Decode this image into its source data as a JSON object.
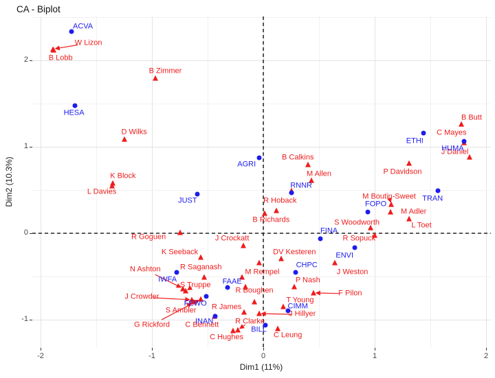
{
  "title": "CA - Biplot",
  "axes": {
    "x": {
      "label": "Dim1 (11%)",
      "major_ticks": [
        -2,
        -1,
        0,
        1,
        2
      ],
      "minor_ticks": [
        -1.5,
        -0.5,
        0.5,
        1.5
      ],
      "range": [
        -2.07,
        2.04
      ]
    },
    "y": {
      "label": "Dim2 (10.3%)",
      "major_ticks": [
        -1,
        0,
        1,
        2
      ],
      "minor_ticks": [
        -0.5,
        0.5,
        1.5,
        2.5
      ],
      "range": [
        -1.33,
        2.51
      ]
    }
  },
  "colors": {
    "committee": "#1c1cee",
    "mp": "#ee1c1c",
    "grid_major": "#e3e3e3",
    "grid_minor": "#f1f1f1",
    "zero_line": "#000000",
    "axis_text": "#454545",
    "title_text": "#111111"
  },
  "chart_data": {
    "type": "scatter",
    "title": "CA - Biplot",
    "xlabel": "Dim1 (11%)",
    "ylabel": "Dim2 (10.3%)",
    "xlim": [
      -2.07,
      2.04
    ],
    "ylim": [
      -1.33,
      2.51
    ],
    "grid": true,
    "zero_lines": {
      "x": 0,
      "y": 0,
      "style": "dashed"
    },
    "series": [
      {
        "name": "committees",
        "marker": "circle",
        "color_key": "committee",
        "points": [
          {
            "label": "ACVA",
            "x": -1.72,
            "y": 2.33,
            "lx": -1.62,
            "ly": 2.39
          },
          {
            "label": "HESA",
            "x": -1.69,
            "y": 1.48,
            "lx": -1.7,
            "ly": 1.39
          },
          {
            "label": "AGRI",
            "x": -0.04,
            "y": 0.87,
            "lx": -0.15,
            "ly": 0.79
          },
          {
            "label": "JUST",
            "x": -0.59,
            "y": 0.45,
            "lx": -0.68,
            "ly": 0.37
          },
          {
            "label": "RNNR",
            "x": 0.25,
            "y": 0.47,
            "lx": 0.34,
            "ly": 0.55
          },
          {
            "label": "ETHI",
            "x": 1.44,
            "y": 1.16,
            "lx": 1.36,
            "ly": 1.06
          },
          {
            "label": "HUMA",
            "x": 1.8,
            "y": 1.06,
            "lx": 1.7,
            "ly": 0.98
          },
          {
            "label": "TRAN",
            "x": 1.57,
            "y": 0.49,
            "lx": 1.52,
            "ly": 0.4
          },
          {
            "label": "FOPO",
            "x": 0.94,
            "y": 0.25,
            "lx": 1.01,
            "ly": 0.33
          },
          {
            "label": "FINA",
            "x": 0.51,
            "y": -0.06,
            "lx": 0.59,
            "ly": 0.02
          },
          {
            "label": "ENVI",
            "x": 0.82,
            "y": -0.17,
            "lx": 0.73,
            "ly": -0.26
          },
          {
            "label": "CHPC",
            "x": 0.29,
            "y": -0.45,
            "lx": 0.39,
            "ly": -0.37
          },
          {
            "label": "IWFA",
            "x": -0.78,
            "y": -0.45,
            "lx": -0.86,
            "ly": -0.54
          },
          {
            "label": "FAAE",
            "x": -0.32,
            "y": -0.63,
            "lx": -0.28,
            "ly": -0.56
          },
          {
            "label": "FEWO",
            "x": -0.51,
            "y": -0.73,
            "lx": -0.61,
            "ly": -0.82
          },
          {
            "label": "INAN",
            "x": -0.43,
            "y": -0.96,
            "lx": -0.53,
            "ly": -1.02
          },
          {
            "label": "CIMM",
            "x": 0.22,
            "y": -0.9,
            "lx": 0.31,
            "ly": -0.85
          },
          {
            "label": "BILL",
            "x": 0.02,
            "y": -1.06,
            "lx": -0.04,
            "ly": -1.12
          }
        ]
      },
      {
        "name": "mps",
        "marker": "triangle",
        "color_key": "mp",
        "points": [
          {
            "label": "W Lizon",
            "x": -1.89,
            "y": 2.13,
            "lx": -1.57,
            "ly": 2.2,
            "arrow": true
          },
          {
            "label": "B Lobb",
            "x": -1.88,
            "y": 2.12,
            "lx": -1.82,
            "ly": 2.02
          },
          {
            "label": "B Zimmer",
            "x": -0.97,
            "y": 1.79,
            "lx": -0.88,
            "ly": 1.87
          },
          {
            "label": "D Wilks",
            "x": -1.25,
            "y": 1.09,
            "lx": -1.16,
            "ly": 1.17
          },
          {
            "label": "K Block",
            "x": -1.35,
            "y": 0.58,
            "lx": -1.26,
            "ly": 0.66
          },
          {
            "label": "L Davies",
            "x": -1.36,
            "y": 0.55,
            "lx": -1.45,
            "ly": 0.48
          },
          {
            "label": "B Calkins",
            "x": 0.4,
            "y": 0.79,
            "lx": 0.31,
            "ly": 0.87
          },
          {
            "label": "M Allen",
            "x": 0.43,
            "y": 0.61,
            "lx": 0.5,
            "ly": 0.68
          },
          {
            "label": "R Hoback",
            "x": 0.12,
            "y": 0.26,
            "lx": 0.15,
            "ly": 0.37
          },
          {
            "label": "B Richards",
            "x": 0.01,
            "y": 0.23,
            "lx": 0.07,
            "ly": 0.15
          },
          {
            "label": "P Davidson",
            "x": 1.31,
            "y": 0.81,
            "lx": 1.25,
            "ly": 0.71
          },
          {
            "label": "M Boutin-Sweet",
            "x": 1.15,
            "y": 0.33,
            "lx": 1.13,
            "ly": 0.42,
            "arrow": true
          },
          {
            "label": "M Adler",
            "x": 1.14,
            "y": 0.25,
            "lx": 1.35,
            "ly": 0.25
          },
          {
            "label": "S Woodworth",
            "x": 0.96,
            "y": 0.06,
            "lx": 0.84,
            "ly": 0.12
          },
          {
            "label": "L Toet",
            "x": 1.31,
            "y": 0.17,
            "lx": 1.42,
            "ly": 0.09
          },
          {
            "label": "R Sopuck",
            "x": 1.0,
            "y": -0.02,
            "lx": 0.86,
            "ly": -0.06
          },
          {
            "label": "B Butt",
            "x": 1.78,
            "y": 1.26,
            "lx": 1.87,
            "ly": 1.33
          },
          {
            "label": "C Mayes",
            "x": 1.8,
            "y": 1.05,
            "lx": 1.69,
            "ly": 1.16
          },
          {
            "label": "J Daniel",
            "x": 1.85,
            "y": 0.88,
            "lx": 1.72,
            "ly": 0.94
          },
          {
            "label": "J Crockatt",
            "x": -0.18,
            "y": -0.14,
            "lx": -0.28,
            "ly": -0.06
          },
          {
            "label": "R Goguen",
            "x": -0.75,
            "y": 0.01,
            "lx": -1.03,
            "ly": -0.05
          },
          {
            "label": "K Seeback",
            "x": -0.56,
            "y": -0.28,
            "lx": -0.75,
            "ly": -0.22
          },
          {
            "label": "R Saganash",
            "x": -0.53,
            "y": -0.51,
            "lx": -0.56,
            "ly": -0.4
          },
          {
            "label": "N Ashton",
            "x": -0.72,
            "y": -0.64,
            "lx": -1.06,
            "ly": -0.42,
            "arrow": true
          },
          {
            "label": "S Truppe",
            "x": -0.7,
            "y": -0.67,
            "lx": -0.61,
            "ly": -0.6,
            "arrow": true
          },
          {
            "label": "DV Kesteren",
            "x": 0.16,
            "y": -0.29,
            "lx": 0.28,
            "ly": -0.22
          },
          {
            "label": "M Rempel",
            "x": -0.19,
            "y": -0.51,
            "lx": -0.01,
            "ly": -0.45
          },
          {
            "label": "P Nash",
            "x": 0.28,
            "y": -0.62,
            "lx": 0.4,
            "ly": -0.55
          },
          {
            "label": "J Weston",
            "x": 0.64,
            "y": -0.34,
            "lx": 0.8,
            "ly": -0.45
          },
          {
            "label": "F Pilon",
            "x": 0.45,
            "y": -0.69,
            "lx": 0.78,
            "ly": -0.7,
            "arrow": true
          },
          {
            "label": "T Young",
            "x": 0.18,
            "y": -0.85,
            "lx": 0.33,
            "ly": -0.78
          },
          {
            "label": "J Hillyer",
            "x": -0.04,
            "y": -0.93,
            "lx": 0.35,
            "ly": -0.94,
            "arrow": true
          },
          {
            "label": "R James",
            "x": -0.17,
            "y": -0.91,
            "lx": -0.33,
            "ly": -0.86
          },
          {
            "label": "R Boughen",
            "x": -0.08,
            "y": -0.79,
            "lx": -0.08,
            "ly": -0.67
          },
          {
            "label": "R Clarke",
            "x": -0.23,
            "y": -1.12,
            "lx": -0.12,
            "ly": -1.02,
            "arrow": true
          },
          {
            "label": "C Leung",
            "x": 0.13,
            "y": -1.1,
            "lx": 0.22,
            "ly": -1.18
          },
          {
            "label": "C Hughes",
            "x": -0.27,
            "y": -1.13,
            "lx": -0.33,
            "ly": -1.21
          },
          {
            "label": "C Bennett",
            "x": -0.44,
            "y": -0.96,
            "lx": -0.55,
            "ly": -1.06
          },
          {
            "label": "G Rickford",
            "x": -0.56,
            "y": -0.76,
            "lx": -1.0,
            "ly": -1.06,
            "arrow": true
          },
          {
            "label": "S Ambler",
            "x": -0.63,
            "y": -0.79,
            "lx": -0.74,
            "ly": -0.9,
            "arrow": true
          },
          {
            "label": "J Crowder",
            "x": -0.64,
            "y": -0.77,
            "lx": -1.09,
            "ly": -0.74,
            "arrow": true
          }
        ]
      },
      {
        "name": "unlabeled_triangles",
        "marker": "triangle",
        "color_key": "mp",
        "points": [
          {
            "label": "",
            "x": 0.25,
            "y": 0.49
          },
          {
            "label": "",
            "x": -0.04,
            "y": -0.34
          },
          {
            "label": "",
            "x": -0.16,
            "y": -0.62
          }
        ]
      }
    ]
  }
}
